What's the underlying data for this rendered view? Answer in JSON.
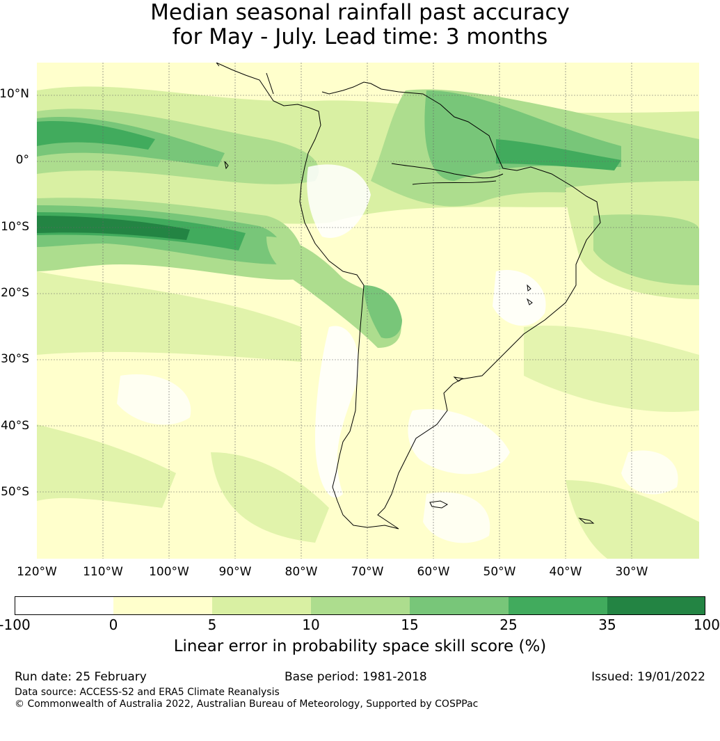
{
  "title": {
    "line1": "Median seasonal rainfall past accuracy",
    "line2": "for May - July. Lead time: 3 months"
  },
  "map": {
    "lat_ticks": [
      "10°N",
      "0°",
      "10°S",
      "20°S",
      "30°S",
      "40°S",
      "50°S"
    ],
    "lon_ticks": [
      "120°W",
      "110°W",
      "100°W",
      "90°W",
      "80°W",
      "70°W",
      "60°W",
      "50°W",
      "40°W",
      "30°W"
    ],
    "lon_range": [
      -120,
      -20
    ],
    "lat_range": [
      -60,
      15
    ]
  },
  "colorbar": {
    "label": "Linear error in probability space skill score (%)",
    "ticks": [
      "-100",
      "0",
      "5",
      "10",
      "15",
      "25",
      "35",
      "100"
    ],
    "colors": [
      "#ffffff",
      "#ffffcc",
      "#d9f0a3",
      "#addd8e",
      "#78c679",
      "#41ab5d",
      "#238443"
    ]
  },
  "footer": {
    "run_date": "Run date: 25 February",
    "base_period": "Base period: 1981-2018",
    "issued": "Issued: 19/01/2022",
    "data_source": "Data source: ACCESS-S2 and ERA5 Climate Reanalysis",
    "copyright": "© Commonwealth of Australia 2022, Australian Bureau of Meteorology, Supported by COSPPac"
  }
}
